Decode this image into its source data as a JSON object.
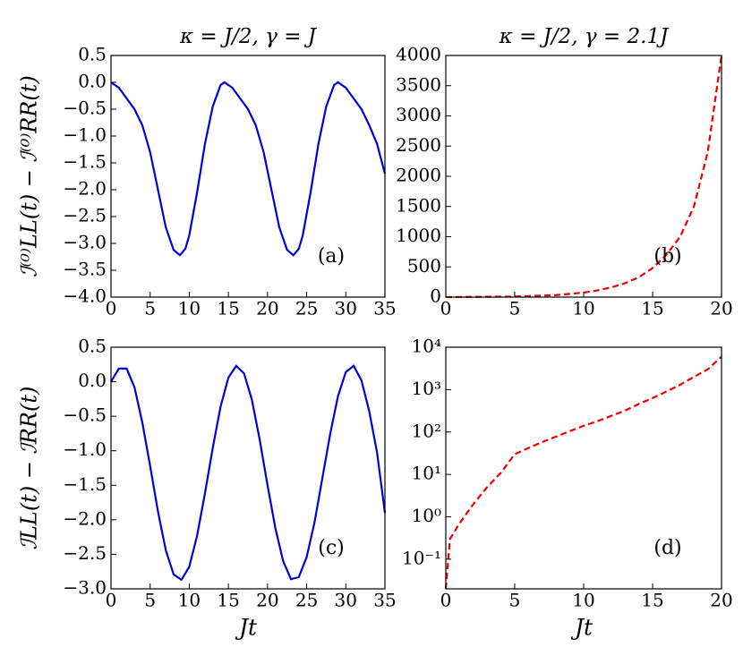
{
  "chart_data": [
    {
      "type": "line",
      "title": "κ = J/2, γ = J",
      "ylabel": "ℐ⁽⁰⁾LL(t) − ℐ⁽⁰⁾RR(t)",
      "annotation": "(a)",
      "x": [
        0,
        1,
        2,
        3,
        4,
        5,
        6,
        7,
        8,
        8.8,
        9.5,
        10,
        11,
        12,
        13,
        14,
        14.5,
        15.5,
        16.5,
        17.5,
        18.5,
        19.5,
        20.5,
        21.5,
        22.5,
        23.3,
        24,
        24.5,
        25.5,
        26.5,
        27.5,
        28.5,
        29,
        30,
        31,
        32,
        33,
        34,
        35
      ],
      "series": [
        {
          "color": "#0000dd",
          "linestyle": "solid",
          "values": [
            0,
            -0.1,
            -0.3,
            -0.5,
            -0.8,
            -1.3,
            -2.0,
            -2.7,
            -3.12,
            -3.22,
            -3.1,
            -2.85,
            -2.05,
            -1.15,
            -0.45,
            -0.05,
            0,
            -0.1,
            -0.3,
            -0.5,
            -0.8,
            -1.3,
            -2.0,
            -2.7,
            -3.12,
            -3.22,
            -3.1,
            -2.85,
            -2.05,
            -1.15,
            -0.45,
            -0.05,
            0,
            -0.1,
            -0.3,
            -0.5,
            -0.8,
            -1.15,
            -1.7
          ]
        }
      ],
      "xlim": [
        0,
        35
      ],
      "xticks": [
        0,
        5,
        10,
        15,
        20,
        25,
        30,
        35
      ],
      "ylim": [
        -4,
        0.5
      ],
      "yticks": [
        {
          "value": -4,
          "label": "−4.0"
        },
        {
          "value": -3.5,
          "label": "−3.5"
        },
        {
          "value": -3,
          "label": "−3.0"
        },
        {
          "value": -2.5,
          "label": "−2.5"
        },
        {
          "value": -2,
          "label": "−2.0"
        },
        {
          "value": -1.5,
          "label": "−1.5"
        },
        {
          "value": -1,
          "label": "−1.0"
        },
        {
          "value": -0.5,
          "label": "−0.5"
        },
        {
          "value": 0,
          "label": "0.0"
        },
        {
          "value": 0.5,
          "label": "0.5"
        }
      ],
      "log": false
    },
    {
      "type": "line",
      "title": "κ = J/2, γ = 2.1J",
      "annotation": "(b)",
      "x": [
        0,
        5,
        8,
        10,
        11,
        12,
        13,
        14,
        15,
        16,
        17,
        18,
        19,
        20
      ],
      "series": [
        {
          "color": "#ee0000",
          "linestyle": "dashed",
          "values": [
            0,
            9,
            33,
            75,
            110,
            160,
            230,
            330,
            480,
            700,
            1000,
            1500,
            2400,
            4000
          ]
        }
      ],
      "xlim": [
        0,
        20
      ],
      "xticks": [
        0,
        5,
        10,
        15,
        20
      ],
      "ylim": [
        0,
        4000
      ],
      "yticks": [
        0,
        500,
        1000,
        1500,
        2000,
        2500,
        3000,
        3500,
        4000
      ],
      "log": false
    },
    {
      "type": "line",
      "ylabel": "ℐLL(t) − ℐRR(t)",
      "xlabel": "Jt",
      "annotation": "(c)",
      "x": [
        0,
        1,
        2,
        3,
        4,
        5,
        6,
        7,
        8,
        9,
        10,
        11,
        12,
        13,
        14,
        15,
        16,
        17,
        18,
        19,
        20,
        21,
        22,
        23,
        24,
        25,
        26,
        27,
        28,
        29,
        30,
        31,
        32,
        33,
        34,
        35
      ],
      "series": [
        {
          "color": "#0000dd",
          "linestyle": "solid",
          "values": [
            0,
            0.19,
            0.19,
            -0.08,
            -0.59,
            -1.22,
            -1.88,
            -2.44,
            -2.79,
            -2.87,
            -2.68,
            -2.23,
            -1.62,
            -0.96,
            -0.36,
            0.06,
            0.23,
            0.12,
            -0.26,
            -0.84,
            -1.5,
            -2.12,
            -2.6,
            -2.86,
            -2.83,
            -2.54,
            -2.04,
            -1.4,
            -0.76,
            -0.21,
            0.14,
            0.23,
            0.02,
            -0.43,
            -1.03,
            -1.9
          ]
        }
      ],
      "xlim": [
        0,
        35
      ],
      "xticks": [
        0,
        5,
        10,
        15,
        20,
        25,
        30,
        35
      ],
      "ylim": [
        -3,
        0.5
      ],
      "yticks": [
        {
          "value": -3,
          "label": "−3.0"
        },
        {
          "value": -2.5,
          "label": "−2.5"
        },
        {
          "value": -2,
          "label": "−2.0"
        },
        {
          "value": -1.5,
          "label": "−1.5"
        },
        {
          "value": -1,
          "label": "−1.0"
        },
        {
          "value": -0.5,
          "label": "−0.5"
        },
        {
          "value": 0,
          "label": "0.0"
        },
        {
          "value": 0.5,
          "label": "0.5"
        }
      ],
      "log": false
    },
    {
      "type": "line",
      "xlabel": "Jt",
      "annotation": "(d)",
      "x": [
        0,
        0.3,
        1,
        2,
        3,
        4,
        5,
        6,
        7,
        8,
        9,
        10,
        11,
        12,
        13,
        14,
        15,
        16,
        17,
        18,
        19,
        20
      ],
      "series": [
        {
          "color": "#ee0000",
          "linestyle": "dashed",
          "values": [
            0.02,
            0.3,
            0.7,
            2,
            5,
            11,
            30,
            42,
            58,
            78,
            105,
            140,
            180,
            240,
            320,
            460,
            630,
            900,
            1300,
            2000,
            3000,
            6000
          ]
        }
      ],
      "xlim": [
        0,
        20
      ],
      "xticks": [
        0,
        5,
        10,
        15,
        20
      ],
      "ylim": [
        0.02,
        10000
      ],
      "yticks": [
        {
          "value": 0.1,
          "label": "10⁻¹"
        },
        {
          "value": 1,
          "label": "10⁰"
        },
        {
          "value": 10,
          "label": "10¹"
        },
        {
          "value": 100,
          "label": "10²"
        },
        {
          "value": 1000,
          "label": "10³"
        },
        {
          "value": 10000,
          "label": "10⁴"
        }
      ],
      "log": true
    }
  ]
}
